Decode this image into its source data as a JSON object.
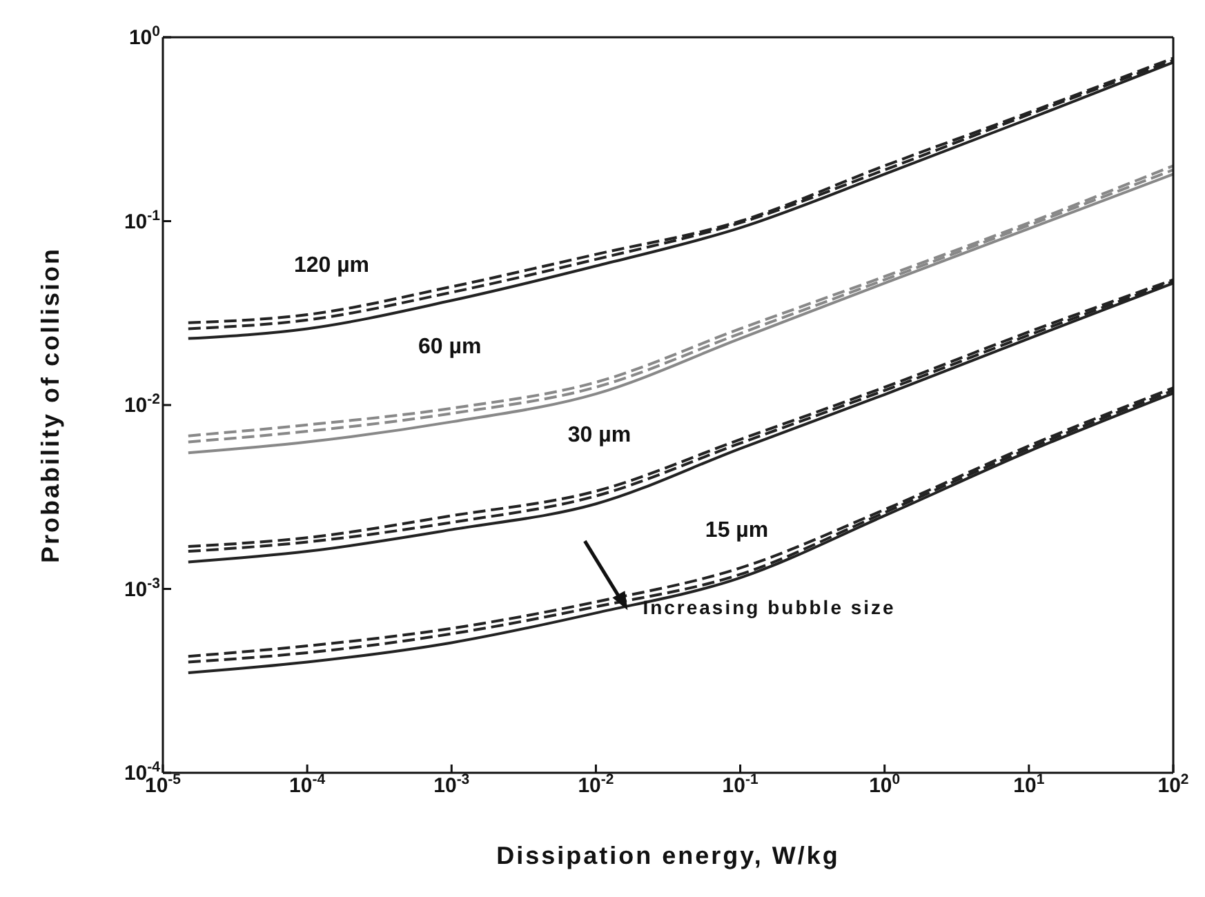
{
  "chart_data": {
    "type": "line",
    "xlabel": "Dissipation energy, W/kg",
    "ylabel": "Probability of collision",
    "log": "xy",
    "xlim": [
      1e-05,
      100
    ],
    "ylim": [
      0.0001,
      1
    ],
    "xticks": [
      {
        "value": 1e-05,
        "label": "10$^{-5}$"
      },
      {
        "value": 0.0001,
        "label": "10$^{-4}$"
      },
      {
        "value": 0.001,
        "label": "10$^{-3}$"
      },
      {
        "value": 0.01,
        "label": "10$^{-2}$"
      },
      {
        "value": 0.1,
        "label": "10$^{-1}$"
      },
      {
        "value": 1,
        "label": "10$^{0}$"
      },
      {
        "value": 10,
        "label": "10$^{1}$"
      },
      {
        "value": 100,
        "label": "10$^{2}$"
      }
    ],
    "yticks": [
      {
        "value": 0.0001,
        "label": "10$^{-4}$"
      },
      {
        "value": 0.001,
        "label": "10$^{-3}$"
      },
      {
        "value": 0.01,
        "label": "10$^{-2}$"
      },
      {
        "value": 0.1,
        "label": "10$^{-1}$"
      },
      {
        "value": 1,
        "label": "10$^{0}$"
      }
    ],
    "x": [
      1.5e-05,
      0.0001,
      0.001,
      0.01,
      0.1,
      1,
      10,
      100
    ],
    "series": [
      {
        "color": "#222222",
        "line_style": "solid",
        "values": [
          0.023,
          0.026,
          0.037,
          0.057,
          0.092,
          0.18,
          0.36,
          0.73
        ]
      },
      {
        "color": "#222222",
        "line_style": "dashed",
        "values": [
          0.026,
          0.029,
          0.041,
          0.062,
          0.098,
          0.19,
          0.38,
          0.75
        ]
      },
      {
        "color": "#222222",
        "line_style": "dashed",
        "values": [
          0.028,
          0.031,
          0.044,
          0.066,
          0.1,
          0.2,
          0.39,
          0.77
        ]
      },
      {
        "color": "#888888",
        "line_style": "solid",
        "values": [
          0.0055,
          0.0063,
          0.0081,
          0.0115,
          0.023,
          0.046,
          0.091,
          0.18
        ]
      },
      {
        "color": "#888888",
        "line_style": "dashed",
        "values": [
          0.0063,
          0.0072,
          0.009,
          0.0125,
          0.0245,
          0.048,
          0.095,
          0.19
        ]
      },
      {
        "color": "#888888",
        "line_style": "dashed",
        "values": [
          0.0068,
          0.0078,
          0.0096,
          0.0133,
          0.026,
          0.05,
          0.098,
          0.2
        ]
      },
      {
        "color": "#222222",
        "line_style": "solid",
        "values": [
          0.0014,
          0.0016,
          0.0021,
          0.0029,
          0.0058,
          0.0114,
          0.023,
          0.046
        ]
      },
      {
        "color": "#222222",
        "line_style": "dashed",
        "values": [
          0.0016,
          0.0018,
          0.0023,
          0.0032,
          0.0062,
          0.012,
          0.024,
          0.047
        ]
      },
      {
        "color": "#222222",
        "line_style": "dashed",
        "values": [
          0.0017,
          0.0019,
          0.0025,
          0.0034,
          0.0065,
          0.0125,
          0.025,
          0.048
        ]
      },
      {
        "color": "#222222",
        "line_style": "solid",
        "values": [
          0.00035,
          0.0004,
          0.00051,
          0.00074,
          0.00115,
          0.0025,
          0.0056,
          0.0116
        ]
      },
      {
        "color": "#222222",
        "line_style": "dashed",
        "values": [
          0.0004,
          0.00045,
          0.00057,
          0.0008,
          0.0012,
          0.0026,
          0.0058,
          0.012
        ]
      },
      {
        "color": "#222222",
        "line_style": "dashed",
        "values": [
          0.00043,
          0.00049,
          0.00061,
          0.00085,
          0.0013,
          0.0027,
          0.006,
          0.0124
        ]
      }
    ],
    "annotations": [
      "120 µm",
      "60 µm",
      "30 µm",
      "15 µm",
      "Increasing bubble size"
    ]
  }
}
